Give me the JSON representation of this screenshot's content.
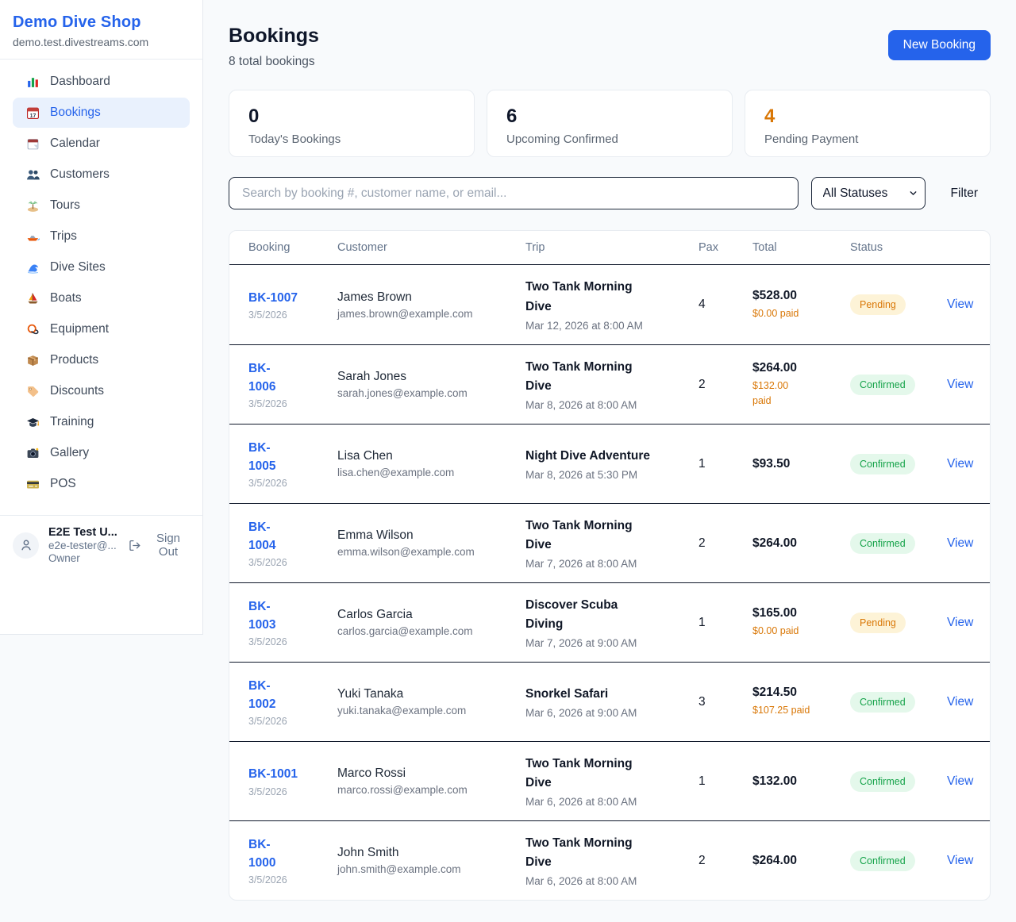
{
  "sidebar": {
    "shop_name": "Demo Dive Shop",
    "shop_domain": "demo.test.divestreams.com",
    "items": [
      {
        "icon": "bar-chart-icon",
        "label": "Dashboard",
        "active": false
      },
      {
        "icon": "calendar-17-icon",
        "label": "Bookings",
        "active": true
      },
      {
        "icon": "calendar-page-icon",
        "label": "Calendar",
        "active": false
      },
      {
        "icon": "people-icon",
        "label": "Customers",
        "active": false
      },
      {
        "icon": "island-icon",
        "label": "Tours",
        "active": false
      },
      {
        "icon": "speedboat-icon",
        "label": "Trips",
        "active": false
      },
      {
        "icon": "wave-icon",
        "label": "Dive Sites",
        "active": false
      },
      {
        "icon": "sailboat-icon",
        "label": "Boats",
        "active": false
      },
      {
        "icon": "diving-mask-icon",
        "label": "Equipment",
        "active": false
      },
      {
        "icon": "package-icon",
        "label": "Products",
        "active": false
      },
      {
        "icon": "tag-icon",
        "label": "Discounts",
        "active": false
      },
      {
        "icon": "grad-cap-icon",
        "label": "Training",
        "active": false
      },
      {
        "icon": "camera-icon",
        "label": "Gallery",
        "active": false
      },
      {
        "icon": "credit-card-icon",
        "label": "POS",
        "active": false
      }
    ],
    "user": {
      "name": "E2E Test U...",
      "email": "e2e-tester@...",
      "role": "Owner",
      "sign_out_label": "Sign Out"
    }
  },
  "header": {
    "title": "Bookings",
    "subtitle": "8 total bookings",
    "new_booking_label": "New Booking"
  },
  "stats": [
    {
      "value": "0",
      "label": "Today's Bookings",
      "accent": false
    },
    {
      "value": "6",
      "label": "Upcoming Confirmed",
      "accent": false
    },
    {
      "value": "4",
      "label": "Pending Payment",
      "accent": true
    }
  ],
  "filters": {
    "search_placeholder": "Search by booking #, customer name, or email...",
    "status_selected": "All Statuses",
    "filter_label": "Filter"
  },
  "table": {
    "columns": [
      "Booking",
      "Customer",
      "Trip",
      "Pax",
      "Total",
      "Status"
    ],
    "view_label": "View",
    "rows": [
      {
        "id": "BK-1007",
        "date": "3/5/2026",
        "name": "James Brown",
        "email": "james.brown@example.com",
        "trip": "Two Tank Morning\nDive",
        "trip_time": "Mar 12, 2026 at 8:00 AM",
        "pax": "4",
        "total": "$528.00",
        "paid": "$0.00 paid",
        "status": "Pending"
      },
      {
        "id": "BK-\n1006",
        "date": "3/5/2026",
        "name": "Sarah Jones",
        "email": "sarah.jones@example.com",
        "trip": "Two Tank Morning\nDive",
        "trip_time": "Mar 8, 2026 at 8:00 AM",
        "pax": "2",
        "total": "$264.00",
        "paid": "$132.00\npaid",
        "status": "Confirmed"
      },
      {
        "id": "BK-\n1005",
        "date": "3/5/2026",
        "name": "Lisa Chen",
        "email": "lisa.chen@example.com",
        "trip": "Night Dive Adventure",
        "trip_time": "Mar 8, 2026 at 5:30 PM",
        "pax": "1",
        "total": "$93.50",
        "paid": null,
        "status": "Confirmed"
      },
      {
        "id": "BK-\n1004",
        "date": "3/5/2026",
        "name": "Emma Wilson",
        "email": "emma.wilson@example.com",
        "trip": "Two Tank Morning\nDive",
        "trip_time": "Mar 7, 2026 at 8:00 AM",
        "pax": "2",
        "total": "$264.00",
        "paid": null,
        "status": "Confirmed"
      },
      {
        "id": "BK-\n1003",
        "date": "3/5/2026",
        "name": "Carlos Garcia",
        "email": "carlos.garcia@example.com",
        "trip": "Discover Scuba\nDiving",
        "trip_time": "Mar 7, 2026 at 9:00 AM",
        "pax": "1",
        "total": "$165.00",
        "paid": "$0.00 paid",
        "status": "Pending"
      },
      {
        "id": "BK-\n1002",
        "date": "3/5/2026",
        "name": "Yuki Tanaka",
        "email": "yuki.tanaka@example.com",
        "trip": "Snorkel Safari",
        "trip_time": "Mar 6, 2026 at 9:00 AM",
        "pax": "3",
        "total": "$214.50",
        "paid": "$107.25 paid",
        "status": "Confirmed"
      },
      {
        "id": "BK-1001",
        "date": "3/5/2026",
        "name": "Marco Rossi",
        "email": "marco.rossi@example.com",
        "trip": "Two Tank Morning\nDive",
        "trip_time": "Mar 6, 2026 at 8:00 AM",
        "pax": "1",
        "total": "$132.00",
        "paid": null,
        "status": "Confirmed"
      },
      {
        "id": "BK-\n1000",
        "date": "3/5/2026",
        "name": "John Smith",
        "email": "john.smith@example.com",
        "trip": "Two Tank Morning\nDive",
        "trip_time": "Mar 6, 2026 at 8:00 AM",
        "pax": "2",
        "total": "$264.00",
        "paid": null,
        "status": "Confirmed"
      }
    ]
  },
  "colors": {
    "accent_blue": "#2563eb",
    "pending_text": "#d97706",
    "pending_bg": "#fdf3d7",
    "confirmed_text": "#16a34a",
    "confirmed_bg": "#e4f8eb",
    "paid_orange": "#d97706"
  }
}
